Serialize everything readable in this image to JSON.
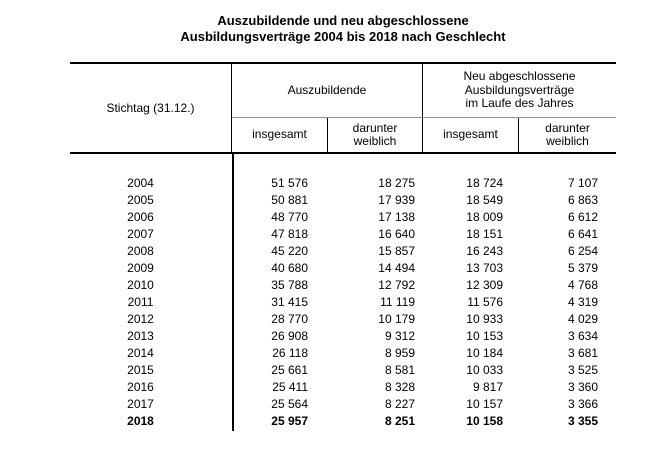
{
  "title": {
    "lines": [
      "Auszubildende und neu abgeschlossene",
      "Ausbildungsverträge 2004 bis 2018 nach Geschlecht"
    ]
  },
  "chart_data": {
    "type": "table",
    "title": "Auszubildende und neu abgeschlossene Ausbildungsverträge 2004 bis 2018 nach Geschlecht",
    "corner_header": "Stichtag (31.12.)",
    "column_groups": [
      {
        "label": "Auszubildende",
        "label_lines": [
          "Auszubildende"
        ],
        "subcolumns": [
          {
            "label": "insgesamt",
            "lines": [
              "insgesamt"
            ]
          },
          {
            "label": "darunter weiblich",
            "lines": [
              "darunter",
              "weiblich"
            ]
          }
        ]
      },
      {
        "label": "Neu abgeschlossene Ausbildungsverträge im Laufe des Jahres",
        "label_lines": [
          "Neu abgeschlossene",
          "Ausbildungsverträge",
          "im Laufe des Jahres"
        ],
        "subcolumns": [
          {
            "label": "insgesamt",
            "lines": [
              "insgesamt"
            ]
          },
          {
            "label": "darunter weiblich",
            "lines": [
              "darunter",
              "weiblich"
            ]
          }
        ]
      }
    ],
    "rows": [
      {
        "year": "2004",
        "values": [
          "51 576",
          "18 275",
          "18 724",
          "7 107"
        ],
        "bold": false
      },
      {
        "year": "2005",
        "values": [
          "50 881",
          "17 939",
          "18 549",
          "6 863"
        ],
        "bold": false
      },
      {
        "year": "2006",
        "values": [
          "48 770",
          "17 138",
          "18 009",
          "6 612"
        ],
        "bold": false
      },
      {
        "year": "2007",
        "values": [
          "47 818",
          "16 640",
          "18 151",
          "6 641"
        ],
        "bold": false
      },
      {
        "year": "2008",
        "values": [
          "45 220",
          "15 857",
          "16 243",
          "6 254"
        ],
        "bold": false
      },
      {
        "year": "2009",
        "values": [
          "40 680",
          "14 494",
          "13 703",
          "5 379"
        ],
        "bold": false
      },
      {
        "year": "2010",
        "values": [
          "35 788",
          "12 792",
          "12 309",
          "4 768"
        ],
        "bold": false
      },
      {
        "year": "2011",
        "values": [
          "31 415",
          "11 119",
          "11 576",
          "4 319"
        ],
        "bold": false
      },
      {
        "year": "2012",
        "values": [
          "28 770",
          "10 179",
          "10 933",
          "4 029"
        ],
        "bold": false
      },
      {
        "year": "2013",
        "values": [
          "26 908",
          "9 312",
          "10 153",
          "3 634"
        ],
        "bold": false
      },
      {
        "year": "2014",
        "values": [
          "26 118",
          "8 959",
          "10 184",
          "3 681"
        ],
        "bold": false
      },
      {
        "year": "2015",
        "values": [
          "25 661",
          "8 581",
          "10 033",
          "3 525"
        ],
        "bold": false
      },
      {
        "year": "2016",
        "values": [
          "25 411",
          "8 328",
          "9 817",
          "3 360"
        ],
        "bold": false
      },
      {
        "year": "2017",
        "values": [
          "25 564",
          "8 227",
          "10 157",
          "3 366"
        ],
        "bold": false
      },
      {
        "year": "2018",
        "values": [
          "25 957",
          "8 251",
          "10 158",
          "3 355"
        ],
        "bold": true
      }
    ]
  },
  "colors": {
    "text": "#000000",
    "rule": "#000000",
    "light_divider": "#909090",
    "background": "#ffffff"
  }
}
